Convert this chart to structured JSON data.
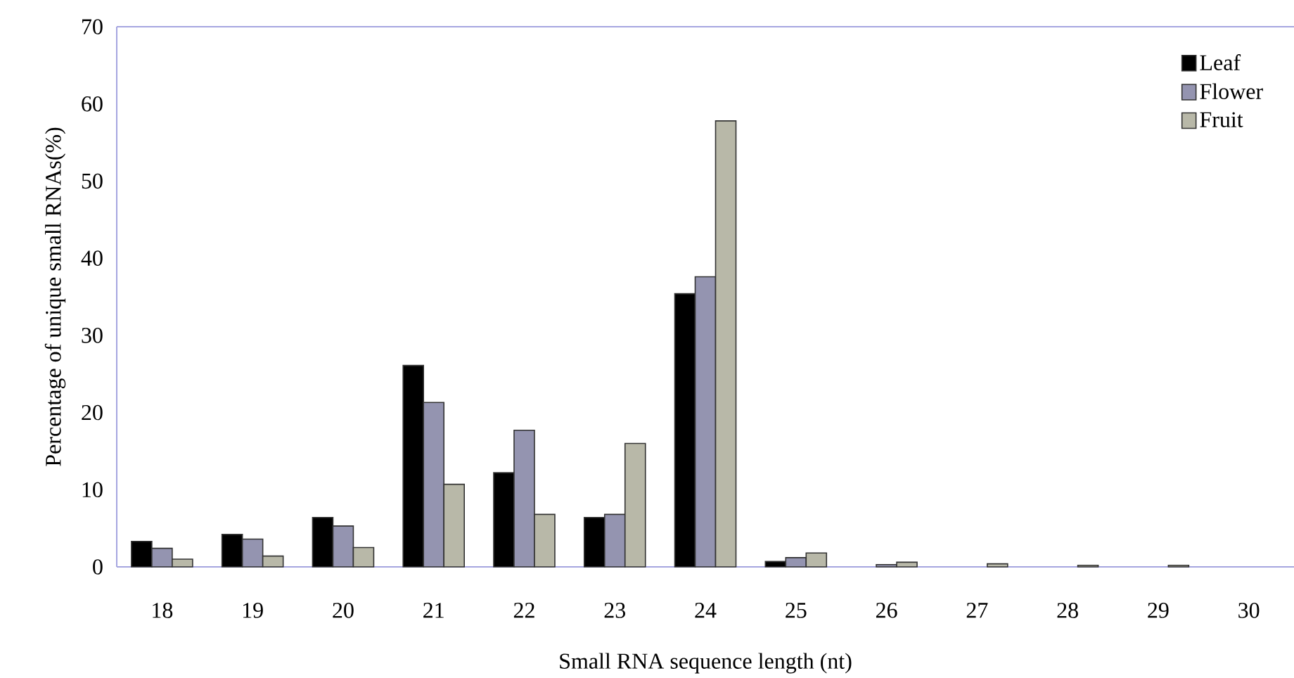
{
  "chart_data": {
    "type": "bar",
    "xlabel": "Small RNA sequence length (nt)",
    "ylabel": "Percentage of unique small RNAs(%)",
    "categories": [
      "18",
      "19",
      "20",
      "21",
      "22",
      "23",
      "24",
      "25",
      "26",
      "27",
      "28",
      "29",
      "30"
    ],
    "series": [
      {
        "name": "Leaf",
        "color": "#000000",
        "values": [
          3.3,
          4.2,
          6.4,
          26.1,
          12.2,
          6.4,
          35.4,
          0.7,
          0,
          0,
          0,
          0,
          0
        ]
      },
      {
        "name": "Flower",
        "color": "#9494b0",
        "values": [
          2.4,
          3.6,
          5.3,
          21.3,
          17.7,
          6.8,
          37.6,
          1.2,
          0.3,
          0,
          0,
          0,
          0
        ]
      },
      {
        "name": "Fruit",
        "color": "#b8b8a8",
        "values": [
          1.0,
          1.4,
          2.5,
          10.7,
          6.8,
          16.0,
          57.8,
          1.8,
          0.6,
          0.4,
          0.2,
          0.2,
          0
        ]
      }
    ],
    "ylim": [
      0,
      70
    ],
    "yticks": [
      0,
      10,
      20,
      30,
      40,
      50,
      60,
      70
    ],
    "legend": "top right",
    "grid": false
  }
}
